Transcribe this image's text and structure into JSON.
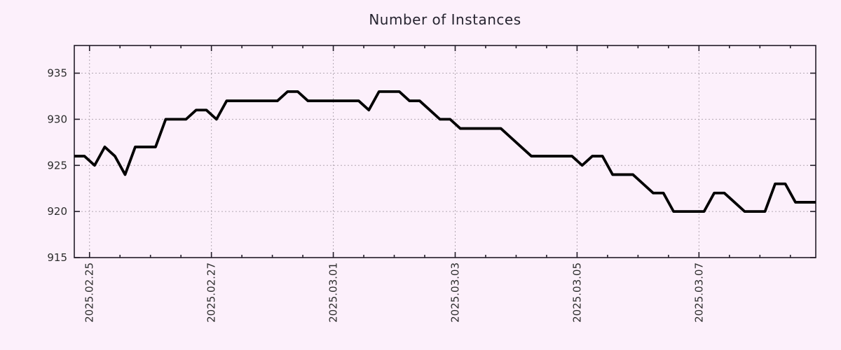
{
  "page": {
    "background": "#fcf0fb"
  },
  "chart_data": {
    "type": "line",
    "title": "Number of Instances",
    "xlabel": "",
    "ylabel": "",
    "grid": true,
    "legend_position": "none",
    "ylim": [
      915,
      938
    ],
    "y_ticks": [
      915,
      920,
      925,
      930,
      935
    ],
    "x_axis": {
      "start_time": "2025-02-24 18:00",
      "end_time": "2025-03-08 22:00",
      "total_hours": 292,
      "major_ticks": [
        {
          "hour": 6,
          "label": "2025.02.25"
        },
        {
          "hour": 54,
          "label": "2025.02.27"
        },
        {
          "hour": 102,
          "label": "2025.03.01"
        },
        {
          "hour": 150,
          "label": "2025.03.03"
        },
        {
          "hour": 198,
          "label": "2025.03.05"
        },
        {
          "hour": 246,
          "label": "2025.03.07"
        }
      ],
      "minor_tick_start_hour": 6,
      "minor_tick_every_hours": 12,
      "label_rotation_deg": -90
    },
    "series": [
      {
        "name": "instances",
        "color": "#000000",
        "step_hours": 4,
        "values": [
          926,
          926,
          925,
          927,
          926,
          924,
          927,
          927,
          927,
          930,
          930,
          930,
          931,
          931,
          930,
          932,
          932,
          932,
          932,
          932,
          932,
          933,
          933,
          932,
          932,
          932,
          932,
          932,
          932,
          931,
          933,
          933,
          933,
          932,
          932,
          931,
          930,
          930,
          929,
          929,
          929,
          929,
          929,
          928,
          927,
          926,
          926,
          926,
          926,
          926,
          925,
          926,
          926,
          924,
          924,
          924,
          923,
          922,
          922,
          920,
          920,
          920,
          920,
          922,
          922,
          921,
          920,
          920,
          920,
          923,
          923,
          921,
          921,
          921
        ]
      }
    ],
    "colors": {
      "background": "#fcf0fb",
      "grid": "#b3a8b3",
      "axis": "#221c28",
      "line": "#000000",
      "text": "#2d2d2d"
    }
  }
}
